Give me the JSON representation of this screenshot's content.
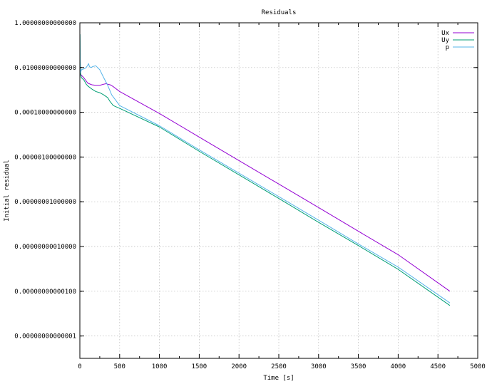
{
  "chart_data": {
    "type": "line",
    "title": "Residuals",
    "xlabel": "Time [s]",
    "ylabel": "Initial residual",
    "xlim": [
      0,
      5000
    ],
    "ylim_log10": [
      -15,
      0
    ],
    "yscale": "log",
    "grid": true,
    "legend_position": "top-right",
    "x_ticks": [
      {
        "value": 0,
        "label": "0"
      },
      {
        "value": 500,
        "label": "500"
      },
      {
        "value": 1000,
        "label": "1000"
      },
      {
        "value": 1500,
        "label": "1500"
      },
      {
        "value": 2000,
        "label": "2000"
      },
      {
        "value": 2500,
        "label": "2500"
      },
      {
        "value": 3000,
        "label": "3000"
      },
      {
        "value": 3500,
        "label": "3500"
      },
      {
        "value": 4000,
        "label": "4000"
      },
      {
        "value": 4500,
        "label": "4500"
      },
      {
        "value": 5000,
        "label": "5000"
      }
    ],
    "y_ticks": [
      {
        "value": 1,
        "label": "1.00000000000000"
      },
      {
        "value": 0.01,
        "label": "0.01000000000000"
      },
      {
        "value": 0.0001,
        "label": "0.00010000000000"
      },
      {
        "value": 1e-06,
        "label": "0.00000100000000"
      },
      {
        "value": 1e-08,
        "label": "0.00000001000000"
      },
      {
        "value": 1e-10,
        "label": "0.00000000010000"
      },
      {
        "value": 1e-12,
        "label": "0.00000000000100"
      },
      {
        "value": 1e-14,
        "label": "0.00000000000001"
      }
    ],
    "series": [
      {
        "name": "Ux",
        "color": "#9400d3",
        "x": [
          0,
          5,
          10,
          20,
          50,
          100,
          150,
          200,
          250,
          300,
          330,
          350,
          380,
          420,
          500,
          1000,
          1500,
          2000,
          2500,
          3000,
          3500,
          4000,
          4650
        ],
        "y": [
          0.004,
          0.006,
          0.005,
          0.0045,
          0.0035,
          0.002,
          0.0017,
          0.0016,
          0.0016,
          0.0018,
          0.0019,
          0.0018,
          0.0017,
          0.0014,
          0.00085,
          8.82e-05,
          7.8e-06,
          6.9e-07,
          6.2e-08,
          5.5e-09,
          4.8e-10,
          4.3e-11,
          1e-12
        ]
      },
      {
        "name": "Uy",
        "color": "#009e73",
        "x": [
          0,
          2,
          5,
          10,
          20,
          50,
          80,
          100,
          150,
          200,
          250,
          300,
          350,
          380,
          420,
          500,
          1000,
          1500,
          2000,
          2500,
          3000,
          3500,
          4000,
          4650
        ],
        "y": [
          0.003,
          0.3,
          0.02,
          0.005,
          0.0035,
          0.0028,
          0.0018,
          0.0015,
          0.0011,
          0.00085,
          0.00075,
          0.0006,
          0.00045,
          0.0003,
          0.0002,
          0.00015,
          2.2e-05,
          1.8e-06,
          1.6e-07,
          1.4e-08,
          1.2e-09,
          1.1e-10,
          9.5e-12,
          2.3e-13
        ]
      },
      {
        "name": "p",
        "color": "#56b4e9",
        "x": [
          0,
          1,
          3,
          5,
          10,
          20,
          40,
          60,
          80,
          100,
          110,
          120,
          140,
          160,
          200,
          250,
          300,
          350,
          400,
          450,
          500,
          1000,
          1500,
          2000,
          2500,
          3000,
          3500,
          4000,
          4650
        ],
        "y": [
          0.005,
          0.3,
          0.03,
          0.009,
          0.006,
          0.008,
          0.0085,
          0.009,
          0.01,
          0.013,
          0.015,
          0.011,
          0.01,
          0.011,
          0.012,
          0.008,
          0.0035,
          0.0016,
          0.0006,
          0.00035,
          0.0002,
          2.5e-05,
          2.1e-06,
          1.9e-07,
          1.7e-08,
          1.5e-09,
          1.3e-10,
          1.2e-11,
          3e-13
        ]
      }
    ]
  }
}
